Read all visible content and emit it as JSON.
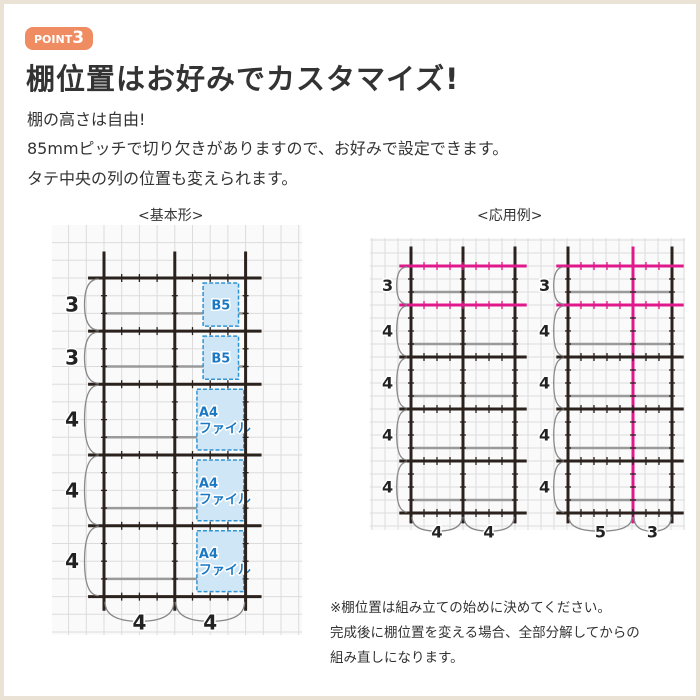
{
  "badge": {
    "prefix": "POINT",
    "number": "3",
    "color": "#f08c62"
  },
  "title": "棚位置はお好みでカスタマイズ!",
  "lead": [
    "棚の高さは自由!",
    "85mmピッチで切り欠きがありますので、お好みで設定できます。",
    "タテ中央の列の位置も変えられます。"
  ],
  "captions": {
    "basic": "<基本形>",
    "applied": "<応用例>"
  },
  "colors": {
    "frame": "#2b211d",
    "highlight": "#e0188c",
    "box_fill": "#cfe6f7",
    "box_border": "#2f94d4",
    "box_text": "#1b78c2",
    "grid": "#dcdcdc",
    "pin": "#9a9a9a"
  },
  "diagrams": [
    {
      "name": "basic",
      "rows": [
        3,
        3,
        4,
        4,
        4
      ],
      "cols": [
        4,
        4
      ],
      "row_labels": [
        "3",
        "3",
        "4",
        "4",
        "4"
      ],
      "col_labels": [
        "4",
        "4"
      ],
      "boxes": [
        {
          "row": 0,
          "label": "B5"
        },
        {
          "row": 1,
          "label": "B5"
        },
        {
          "row": 2,
          "label": "A4\nファイル"
        },
        {
          "row": 3,
          "label": "A4\nファイル"
        },
        {
          "row": 4,
          "label": "A4\nファイル"
        }
      ],
      "pink_shelves": [],
      "pink_center": false
    },
    {
      "name": "applied-1",
      "rows": [
        3,
        4,
        4,
        4,
        4
      ],
      "cols": [
        4,
        4
      ],
      "row_labels": [
        "3",
        "4",
        "4",
        "4",
        "4"
      ],
      "col_labels": [
        "4",
        "4"
      ],
      "boxes": [],
      "pink_shelves": [
        0,
        1
      ],
      "pink_center": false
    },
    {
      "name": "applied-2",
      "rows": [
        3,
        4,
        4,
        4,
        4
      ],
      "cols": [
        5,
        3
      ],
      "row_labels": [
        "3",
        "4",
        "4",
        "4",
        "4"
      ],
      "col_labels": [
        "5",
        "3"
      ],
      "boxes": [],
      "pink_shelves": [
        0,
        1
      ],
      "pink_center": true
    }
  ],
  "notes": [
    "※棚位置は組み立ての始めに決めてください。",
    "完成後に棚位置を変える場合、全部分解してからの",
    "組み直しになります。"
  ]
}
